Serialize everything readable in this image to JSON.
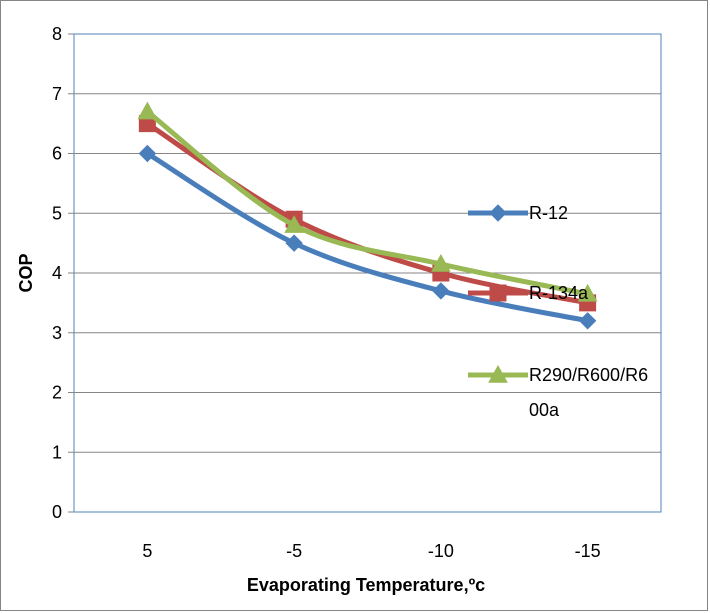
{
  "chart_data": {
    "type": "line",
    "title": "",
    "xlabel": "Evaporating Temperature,ºc",
    "ylabel": "COP",
    "categories": [
      "5",
      "-5",
      "-10",
      "-15"
    ],
    "ylim": [
      0,
      8
    ],
    "yticks": [
      "0",
      "1",
      "2",
      "3",
      "4",
      "5",
      "6",
      "7",
      "8"
    ],
    "grid": "horizontal",
    "legend_placement": "right, inside plot",
    "series": [
      {
        "name": "R-12",
        "values": [
          6.0,
          4.5,
          3.7,
          3.2
        ],
        "color": "#4a7ebb",
        "marker": "diamond"
      },
      {
        "name": "R-134a",
        "values": [
          6.5,
          4.9,
          4.0,
          3.5
        ],
        "color": "#be4b48",
        "marker": "square"
      },
      {
        "name": "R290/R600/R600a",
        "values": [
          6.7,
          4.8,
          4.15,
          3.65
        ],
        "color": "#98b954",
        "marker": "triangle",
        "legend_lines": [
          "R290/R600/R6",
          "00a"
        ]
      }
    ]
  }
}
